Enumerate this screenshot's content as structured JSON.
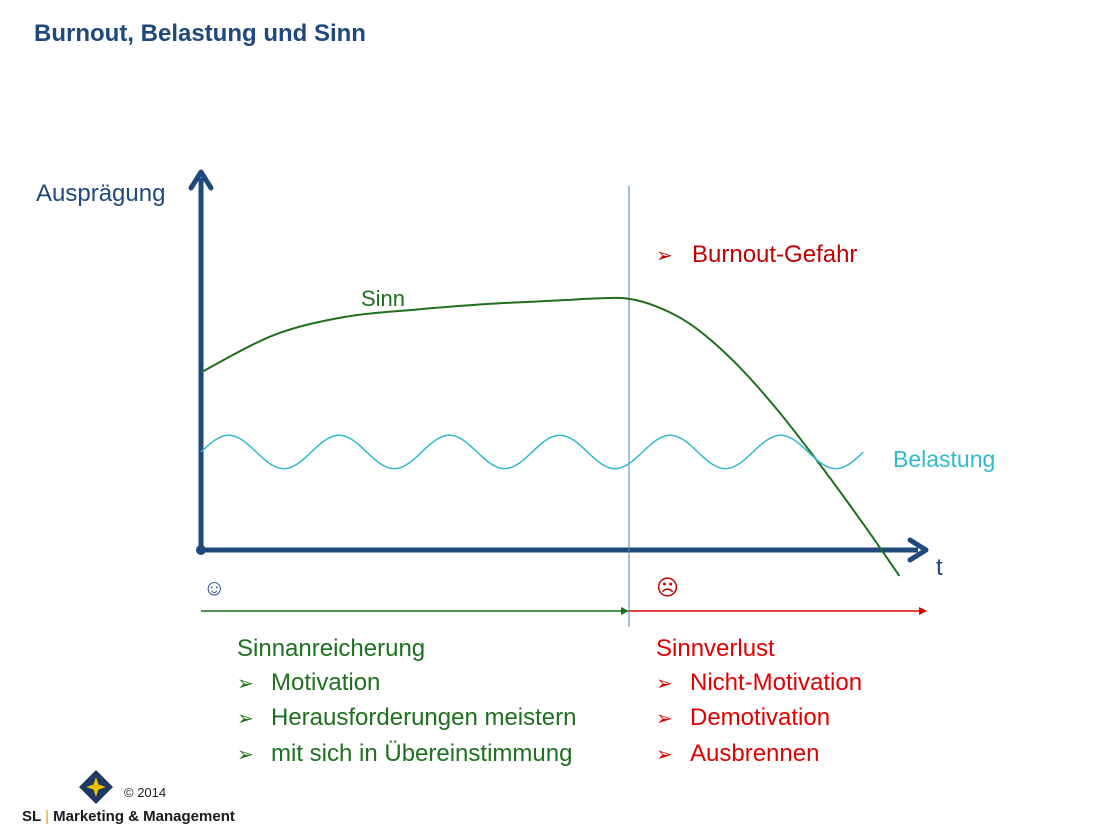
{
  "title": "Burnout, Belastung und Sinn",
  "colors": {
    "axis": "#1f497d",
    "sinn": "#1e6f1e",
    "belastung": "#31b9cc",
    "phase_divider": "#4f81bd",
    "positive_arrow": "#1e6f1e",
    "negative_arrow": "#e00000",
    "warning": "#c00000"
  },
  "chart_data": {
    "type": "line",
    "title": "Burnout, Belastung und Sinn",
    "xlabel": "t",
    "ylabel": "Ausprägung",
    "xlim": [
      0,
      100
    ],
    "ylim": [
      0,
      100
    ],
    "grid": false,
    "series": [
      {
        "name": "Sinn",
        "x": [
          0,
          10,
          20,
          30,
          40,
          50,
          55,
          59,
          63,
          68,
          74,
          80,
          86,
          92,
          97
        ],
        "y": [
          48,
          58,
          63,
          65,
          66.5,
          67.5,
          68,
          68,
          66,
          61,
          51,
          38,
          23,
          7,
          -7
        ]
      },
      {
        "name": "Belastung",
        "baseline": 26.5,
        "amplitude": 4.5,
        "cycles": 6,
        "x_range": [
          0,
          92
        ]
      }
    ],
    "annotations": [
      "Burnout-Gefahr"
    ]
  },
  "phases": {
    "left_icon": "☺",
    "right_icon": "☹",
    "left": {
      "heading": "Sinnanreicherung",
      "items": [
        "Motivation",
        "Herausforderungen meistern",
        "mit sich in Übereinstimmung"
      ]
    },
    "right": {
      "heading": "Sinnverlust",
      "items": [
        "Nicht-Motivation",
        "Demotivation",
        "Ausbrennen"
      ]
    }
  },
  "bullet_icon": "arrowhead-bullet-icon",
  "bullet_glyph": "➢",
  "footer": {
    "copyright": "© 2014",
    "brand_left": "SL",
    "brand_sep": "|",
    "brand_right": "Marketing & Management"
  }
}
